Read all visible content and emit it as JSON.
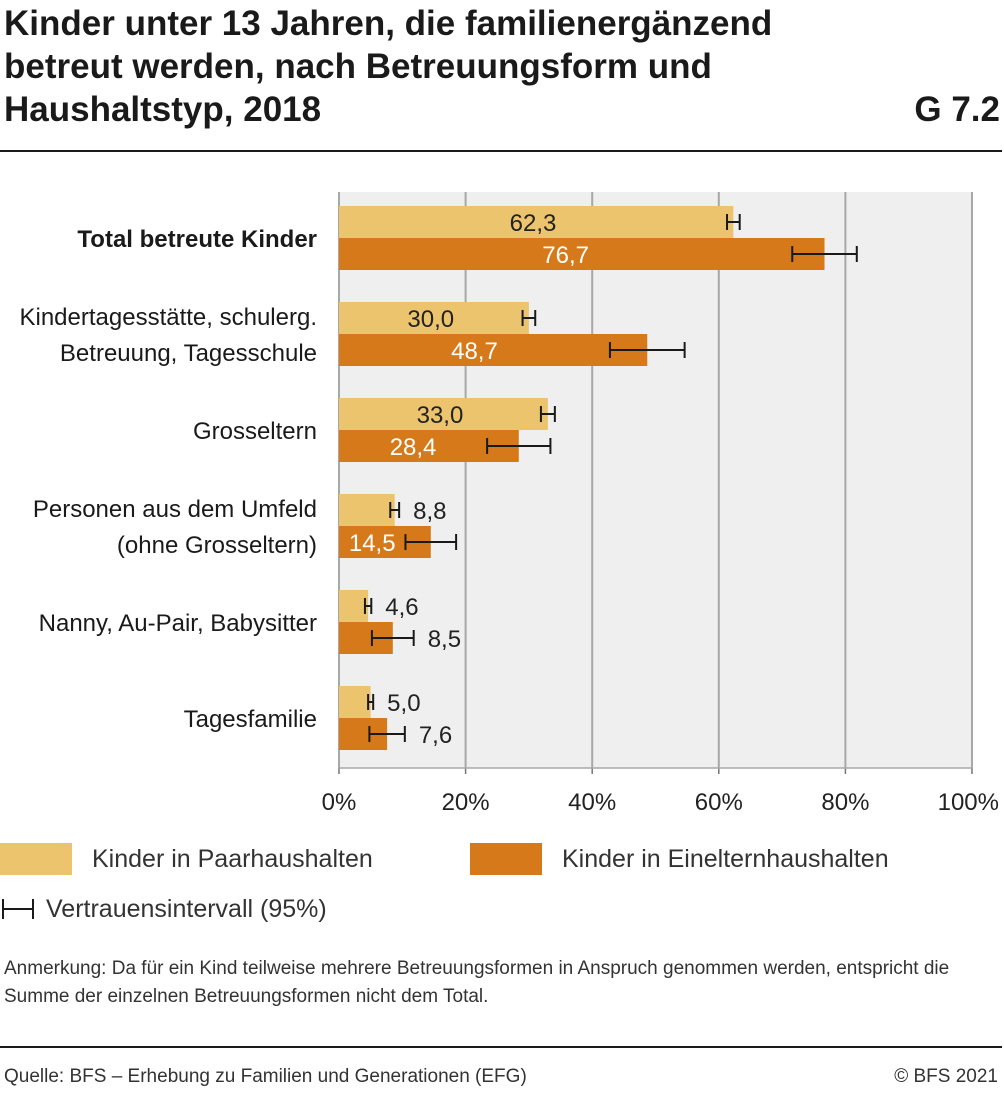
{
  "header": {
    "title_lines": [
      "Kinder unter 13 Jahren, die familienergänzend",
      "betreut werden, nach Betreuungsform und",
      "Haushaltstyp, 2018"
    ],
    "code": "G 7.2"
  },
  "chart_data": {
    "type": "bar",
    "orientation": "horizontal",
    "categories": [
      {
        "lines": [
          "Total betreute Kinder"
        ],
        "bold": true
      },
      {
        "lines": [
          "Kindertagesstätte, schulerg.",
          "Betreuung, Tagesschule"
        ],
        "bold": false
      },
      {
        "lines": [
          "Grosseltern"
        ],
        "bold": false
      },
      {
        "lines": [
          "Personen aus dem Umfeld",
          "(ohne Grosseltern)"
        ],
        "bold": false
      },
      {
        "lines": [
          "Nanny, Au-Pair, Babysitter"
        ],
        "bold": false
      },
      {
        "lines": [
          "Tagesfamilie"
        ],
        "bold": false
      }
    ],
    "series": [
      {
        "name": "Kinder in Paarhaushalten",
        "color": "#EDC46E",
        "values": [
          62.3,
          30.0,
          33.0,
          8.8,
          4.6,
          5.0
        ],
        "labels": [
          "62,3",
          "30,0",
          "33,0",
          "8,8",
          "4,6",
          "5,0"
        ],
        "ci": [
          [
            61.3,
            63.3
          ],
          [
            29.0,
            31.0
          ],
          [
            31.9,
            34.1
          ],
          [
            8.1,
            9.5
          ],
          [
            4.1,
            5.1
          ],
          [
            4.6,
            5.4
          ]
        ]
      },
      {
        "name": "Kinder in Einelternhaushalten",
        "color": "#D5791A",
        "values": [
          76.7,
          48.7,
          28.4,
          14.5,
          8.5,
          7.6
        ],
        "labels": [
          "76,7",
          "48,7",
          "28,4",
          "14,5",
          "8,5",
          "7,6"
        ],
        "ci": [
          [
            71.6,
            81.8
          ],
          [
            42.8,
            54.6
          ],
          [
            23.4,
            33.4
          ],
          [
            10.5,
            18.5
          ],
          [
            5.2,
            11.8
          ],
          [
            4.8,
            10.4
          ]
        ]
      }
    ],
    "xlim": [
      0,
      100
    ],
    "xticks": [
      0,
      20,
      40,
      60,
      80,
      100
    ],
    "xtick_labels": [
      "0%",
      "20%",
      "40%",
      "60%",
      "80%",
      "100%"
    ],
    "grid": true,
    "legend": {
      "items": [
        "Kinder in Paarhaushalten",
        "Kinder in Einelternhaushalten"
      ],
      "ci_label": "Vertrauensintervall (95%)"
    }
  },
  "footer": {
    "note": "Anmerkung: Da für ein Kind teilweise mehrere Betreuungsformen in Anspruch genommen werden, entspricht die Summe der einzelnen Betreuungsformen nicht dem Total.",
    "source": "Quelle: BFS – Erhebung zu Familien und Generationen (EFG)",
    "copyright": "© BFS 2021"
  }
}
